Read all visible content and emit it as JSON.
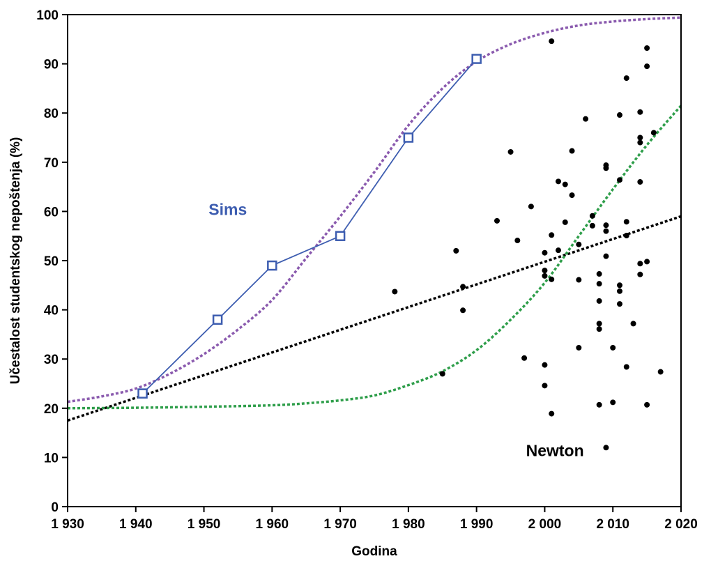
{
  "chart_data": {
    "type": "scatter",
    "xlabel": "Godina",
    "ylabel": "Učestalost studentskog nepoštenja (%)",
    "xlim": [
      1930,
      2020
    ],
    "ylim": [
      0,
      100
    ],
    "x_ticks": [
      1930,
      1940,
      1950,
      1960,
      1970,
      1980,
      1990,
      2000,
      2010,
      2020
    ],
    "x_tick_labels": [
      "1 930",
      "1 940",
      "1 950",
      "1 960",
      "1 970",
      "1 980",
      "1 990",
      "2 000",
      "2 010",
      "2 020"
    ],
    "y_ticks": [
      0,
      10,
      20,
      30,
      40,
      50,
      60,
      70,
      80,
      90,
      100
    ],
    "y_tick_labels": [
      "0",
      "10",
      "20",
      "30",
      "40",
      "50",
      "60",
      "70",
      "80",
      "90",
      "100"
    ],
    "grid": false,
    "annotations": [
      {
        "text": "Sims",
        "x": 1953.5,
        "y": 59.3,
        "color": "#3D5DB0"
      },
      {
        "text": "Newton",
        "x": 2001.5,
        "y": 10.3,
        "color": "#000000"
      }
    ],
    "series": [
      {
        "kind": "line-markers",
        "color": "#3D5DB0",
        "x": [
          1941,
          1952,
          1960,
          1970,
          1980,
          1990
        ],
        "y": [
          23,
          38,
          49,
          55,
          75,
          91
        ]
      },
      {
        "kind": "points",
        "color": "#000000",
        "x": [
          1978,
          1985,
          1987,
          1988,
          1988,
          1993,
          1995,
          1996,
          1997,
          1998,
          2000,
          2000,
          2000,
          2000,
          2000,
          2001,
          2001,
          2001,
          2001,
          2002,
          2002,
          2003,
          2003,
          2004,
          2004,
          2005,
          2005,
          2005,
          2006,
          2007,
          2007,
          2008,
          2008,
          2008,
          2008,
          2008,
          2008,
          2009,
          2009,
          2009,
          2009,
          2009,
          2009,
          2010,
          2010,
          2011,
          2011,
          2011,
          2011,
          2011,
          2012,
          2012,
          2012,
          2012,
          2013,
          2014,
          2014,
          2014,
          2014,
          2014,
          2014,
          2015,
          2015,
          2015,
          2015,
          2016,
          2017
        ],
        "y": [
          43.7,
          27.0,
          52.0,
          44.7,
          39.9,
          58.1,
          72.1,
          54.1,
          30.2,
          61.0,
          51.6,
          48.0,
          46.9,
          28.8,
          24.6,
          94.6,
          55.2,
          46.2,
          18.9,
          66.1,
          52.1,
          65.5,
          57.8,
          72.3,
          63.3,
          53.3,
          46.1,
          32.3,
          78.8,
          59.1,
          57.1,
          47.3,
          45.3,
          41.8,
          37.2,
          36.1,
          20.7,
          69.4,
          68.8,
          57.2,
          56.0,
          50.9,
          12.0,
          32.3,
          21.2,
          79.6,
          66.4,
          45.0,
          43.8,
          41.2,
          87.1,
          57.9,
          55.1,
          28.4,
          37.2,
          80.2,
          75.0,
          74.0,
          66.0,
          49.4,
          47.2,
          93.2,
          89.5,
          49.8,
          20.7,
          76.0,
          27.4
        ]
      },
      {
        "kind": "dotted-line",
        "color": "#000000",
        "x": [
          1930,
          2020
        ],
        "y": [
          17.5,
          59.0
        ]
      },
      {
        "kind": "dotted-curve",
        "color": "#8A5AAE",
        "x": [
          1930,
          1935,
          1940,
          1945,
          1950,
          1955,
          1960,
          1965,
          1970,
          1975,
          1980,
          1985,
          1990,
          1995,
          2000,
          2005,
          2010,
          2015,
          2020
        ],
        "y": [
          21.3,
          22.4,
          24.0,
          27.0,
          31.0,
          36.0,
          42.0,
          50.5,
          59.0,
          68.0,
          77.5,
          85.0,
          90.5,
          94.0,
          96.3,
          97.8,
          98.6,
          99.1,
          99.4
        ]
      },
      {
        "kind": "dotted-curve",
        "color": "#2E9E4A",
        "x": [
          1930,
          1940,
          1950,
          1960,
          1965,
          1970,
          1975,
          1980,
          1985,
          1990,
          1995,
          2000,
          2005,
          2010,
          2015,
          2020
        ],
        "y": [
          20.0,
          20.1,
          20.3,
          20.6,
          21.0,
          21.6,
          22.6,
          24.7,
          27.5,
          31.8,
          38.0,
          45.5,
          55.0,
          64.5,
          73.5,
          81.5
        ]
      }
    ]
  }
}
